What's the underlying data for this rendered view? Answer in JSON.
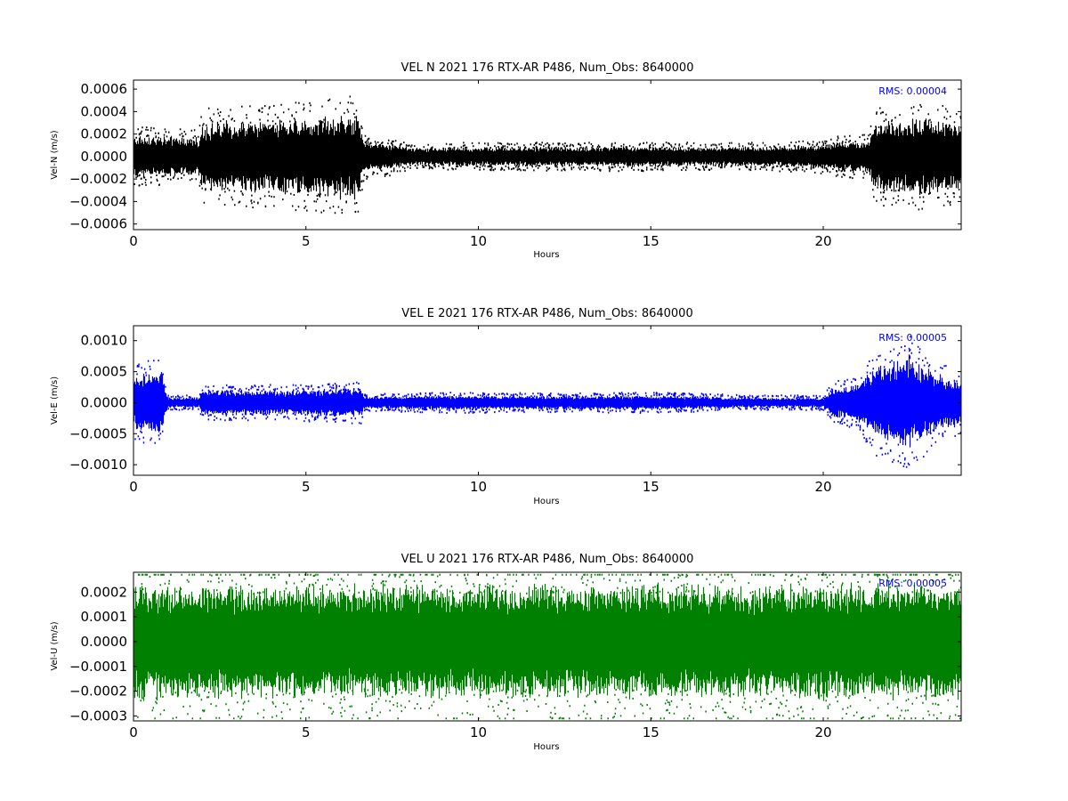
{
  "colors": {
    "background": "#ffffff",
    "axes": "#000000",
    "rms_text": "#0000ff"
  },
  "chart_data": [
    {
      "type": "scatter",
      "title": "VEL N 2021 176 RTX-AR  P486, Num_Obs: 8640000",
      "xlabel": "Hours",
      "ylabel": "Vel-N (m/s)",
      "xlim": [
        0,
        24
      ],
      "ylim": [
        -0.00065,
        0.00068
      ],
      "xticks": [
        0,
        5,
        10,
        15,
        20
      ],
      "xtick_labels": [
        "0",
        "5",
        "10",
        "15",
        "20"
      ],
      "yticks": [
        -0.0006,
        -0.0004,
        -0.0002,
        0.0,
        0.0002,
        0.0004,
        0.0006
      ],
      "ytick_labels": [
        "−0.0006",
        "−0.0004",
        "−0.0002",
        "0.0000",
        "0.0002",
        "0.0004",
        "0.0006"
      ],
      "annotation": "RMS:  0.00004",
      "grid": false,
      "series": [
        {
          "color": "#000000",
          "envelope_hours": [
            0,
            1.9,
            2.0,
            4.5,
            6.5,
            6.7,
            7.5,
            8.0,
            12.0,
            13.0,
            14.0,
            17.0,
            19.0,
            20.0,
            20.5,
            21.3,
            21.5,
            23.0,
            24.0
          ],
          "envelope_amplitude": [
            0.00016,
            0.00014,
            0.00025,
            0.00028,
            0.00032,
            0.00012,
            0.0001,
            7e-05,
            7.5e-05,
            7e-05,
            8e-05,
            7e-05,
            8e-05,
            9e-05,
            0.00011,
            0.00012,
            0.00025,
            0.0003,
            0.00024
          ],
          "peak_max": 0.00066,
          "peak_min": -0.00063,
          "rms": 4e-05,
          "n_obs": 8640000
        }
      ]
    },
    {
      "type": "scatter",
      "title": "VEL E 2021 176 RTX-AR  P486, Num_Obs: 8640000",
      "xlabel": "Hours",
      "ylabel": "Vel-E (m/s)",
      "xlim": [
        0,
        24
      ],
      "ylim": [
        -0.00117,
        0.00124
      ],
      "xticks": [
        0,
        5,
        10,
        15,
        20
      ],
      "xtick_labels": [
        "0",
        "5",
        "10",
        "15",
        "20"
      ],
      "yticks": [
        -0.001,
        -0.0005,
        0.0,
        0.0005,
        0.001
      ],
      "ytick_labels": [
        "−0.0010",
        "−0.0005",
        "0.0000",
        "0.0005",
        "0.0010"
      ],
      "annotation": "RMS:  0.00005",
      "grid": false,
      "series": [
        {
          "color": "#0000ff",
          "envelope_hours": [
            0,
            0.8,
            1.0,
            1.9,
            2.0,
            4.5,
            6.6,
            6.7,
            9.0,
            12.0,
            15.0,
            18.0,
            20.0,
            20.3,
            21.0,
            21.5,
            22.5,
            23.3,
            24.0
          ],
          "envelope_amplitude": [
            0.00035,
            0.00045,
            7e-05,
            7e-05,
            0.00017,
            0.00017,
            0.0002,
            8e-05,
            0.0001,
            9e-05,
            0.0001,
            7e-05,
            7e-05,
            0.0002,
            0.00025,
            0.0005,
            0.00065,
            0.0004,
            0.0003
          ],
          "peak_max": 0.0012,
          "peak_min": -0.00113,
          "rms": 5e-05,
          "n_obs": 8640000
        }
      ]
    },
    {
      "type": "scatter",
      "title": "VEL U 2021 176 RTX-AR  P486, Num_Obs: 8640000",
      "xlabel": "Hours",
      "ylabel": "Vel-U (m/s)",
      "xlim": [
        0,
        24
      ],
      "ylim": [
        -0.00032,
        0.00028
      ],
      "xticks": [
        0,
        5,
        10,
        15,
        20
      ],
      "xtick_labels": [
        "0",
        "5",
        "10",
        "15",
        "20"
      ],
      "yticks": [
        -0.0003,
        -0.0002,
        -0.0001,
        0.0,
        0.0001,
        0.0002
      ],
      "ytick_labels": [
        "−0.0003",
        "−0.0002",
        "−0.0001",
        "0.0000",
        "0.0001",
        "0.0002"
      ],
      "annotation": "RMS:  0.00005",
      "grid": false,
      "series": [
        {
          "color": "#008000",
          "envelope_hours": [
            0,
            6.0,
            12.0,
            18.0,
            24.0
          ],
          "envelope_amplitude": [
            0.000195,
            0.00019,
            0.000195,
            0.00019,
            0.0002
          ],
          "peak_max": 0.00027,
          "peak_min": -0.00031,
          "rms": 5e-05,
          "n_obs": 8640000
        }
      ]
    }
  ]
}
